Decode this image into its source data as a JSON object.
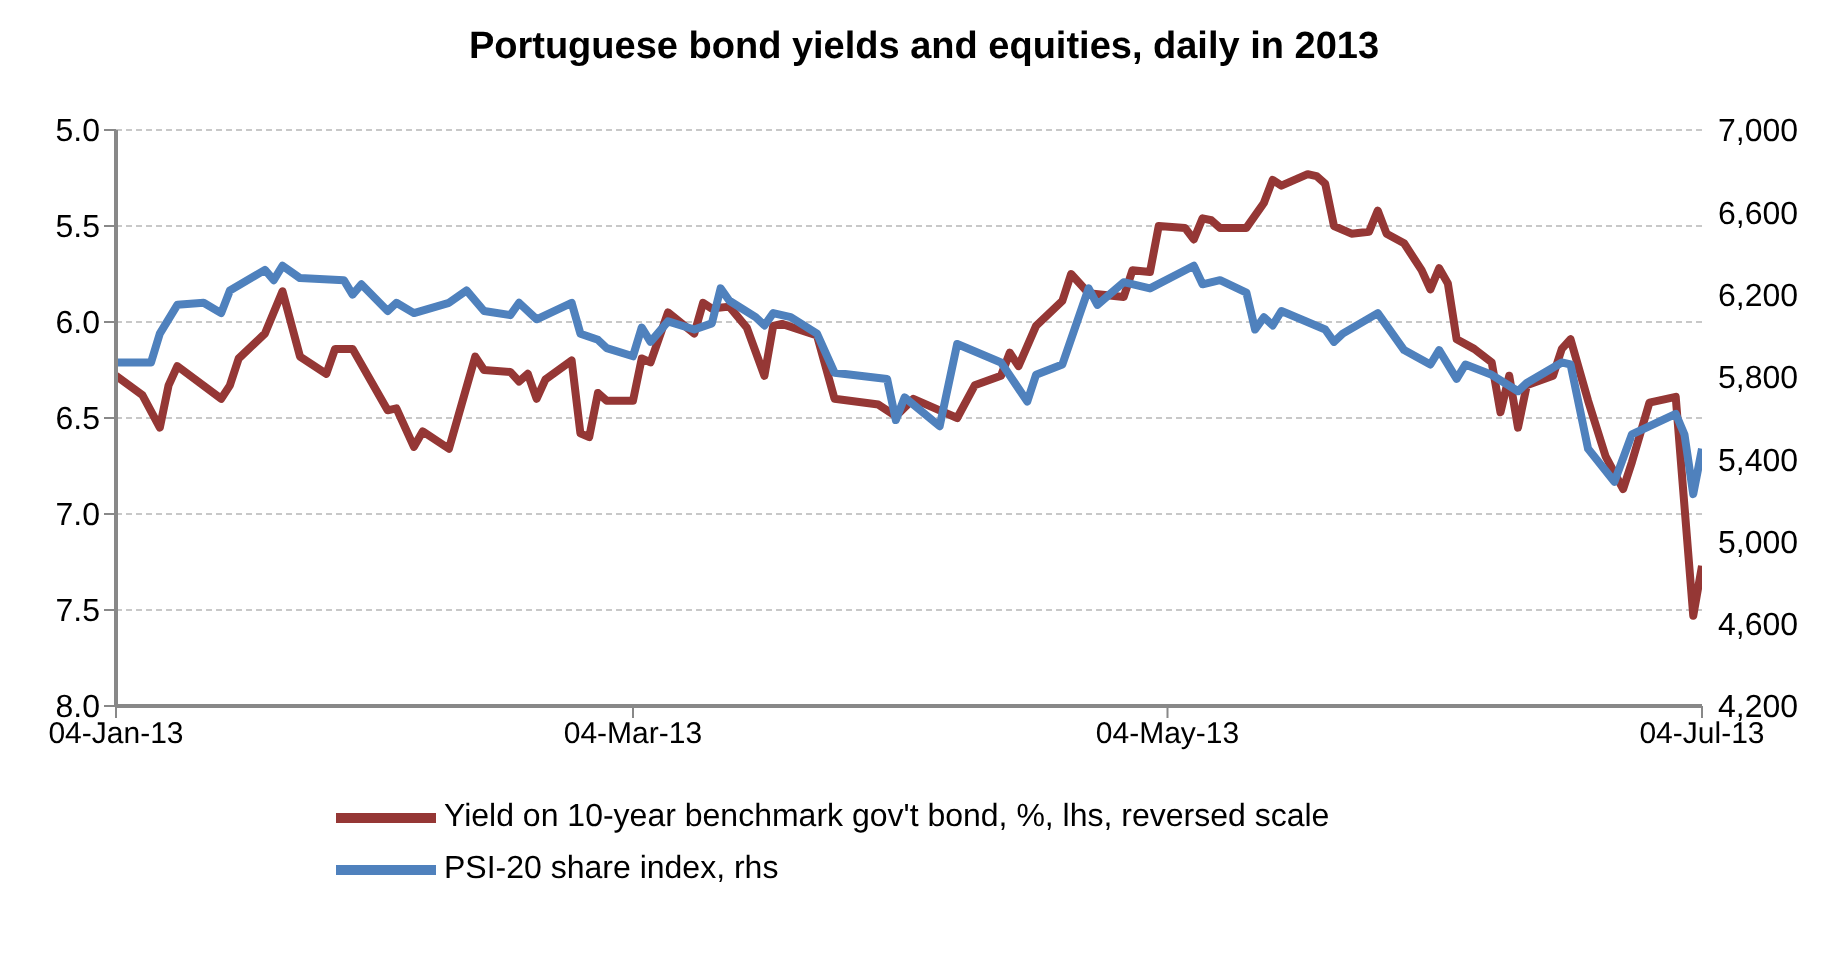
{
  "chart_data": {
    "type": "line",
    "title": "Portuguese bond yields and equities, daily in 2013",
    "xlim": [
      "2013-01-04",
      "2013-07-04"
    ],
    "xticks": [
      {
        "value": "2013-01-04",
        "label": "04-Jan-13"
      },
      {
        "value": "2013-03-04",
        "label": "04-Mar-13"
      },
      {
        "value": "2013-05-04",
        "label": "04-May-13"
      },
      {
        "value": "2013-07-04",
        "label": "04-Jul-13"
      }
    ],
    "ylim": [
      8.0,
      5.0
    ],
    "yticks": [
      {
        "value": 5.0,
        "label": "5.0"
      },
      {
        "value": 5.5,
        "label": "5.5"
      },
      {
        "value": 6.0,
        "label": "6.0"
      },
      {
        "value": 6.5,
        "label": "6.5"
      },
      {
        "value": 7.0,
        "label": "7.0"
      },
      {
        "value": 7.5,
        "label": "7.5"
      },
      {
        "value": 8.0,
        "label": "8.0"
      }
    ],
    "y2lim": [
      4200,
      7000
    ],
    "y2ticks": [
      {
        "value": 4200,
        "label": "4,200"
      },
      {
        "value": 4600,
        "label": "4,600"
      },
      {
        "value": 5000,
        "label": "5,000"
      },
      {
        "value": 5400,
        "label": "5,400"
      },
      {
        "value": 5800,
        "label": "5,800"
      },
      {
        "value": 6200,
        "label": "6,200"
      },
      {
        "value": 6600,
        "label": "6,600"
      },
      {
        "value": 7000,
        "label": "7,000"
      }
    ],
    "grid": "y",
    "legend": "bottom",
    "marker": "none",
    "line_style": "solid",
    "series": [
      {
        "name": "Yield on 10-year benchmark gov't bond, %, lhs, reversed scale",
        "color": "#953735",
        "axis": "y",
        "x": [
          "2013-01-04",
          "2013-01-07",
          "2013-01-09",
          "2013-01-10",
          "2013-01-11",
          "2013-01-16",
          "2013-01-17",
          "2013-01-18",
          "2013-01-21",
          "2013-01-23",
          "2013-01-25",
          "2013-01-28",
          "2013-01-29",
          "2013-01-31",
          "2013-02-04",
          "2013-02-05",
          "2013-02-07",
          "2013-02-08",
          "2013-02-11",
          "2013-02-14",
          "2013-02-15",
          "2013-02-18",
          "2013-02-19",
          "2013-02-20",
          "2013-02-21",
          "2013-02-22",
          "2013-02-25",
          "2013-02-26",
          "2013-02-27",
          "2013-02-28",
          "2013-03-01",
          "2013-03-04",
          "2013-03-05",
          "2013-03-06",
          "2013-03-08",
          "2013-03-11",
          "2013-03-12",
          "2013-03-13",
          "2013-03-15",
          "2013-03-17",
          "2013-03-19",
          "2013-03-20",
          "2013-03-21",
          "2013-03-25",
          "2013-03-27",
          "2013-04-01",
          "2013-04-03",
          "2013-04-05",
          "2013-04-08",
          "2013-04-10",
          "2013-04-12",
          "2013-04-15",
          "2013-04-16",
          "2013-04-17",
          "2013-04-19",
          "2013-04-22",
          "2013-04-23",
          "2013-04-25",
          "2013-04-29",
          "2013-04-30",
          "2013-05-02",
          "2013-05-03",
          "2013-05-06",
          "2013-05-07",
          "2013-05-08",
          "2013-05-09",
          "2013-05-10",
          "2013-05-13",
          "2013-05-15",
          "2013-05-16",
          "2013-05-17",
          "2013-05-20",
          "2013-05-21",
          "2013-05-22",
          "2013-05-23",
          "2013-05-25",
          "2013-05-27",
          "2013-05-28",
          "2013-05-29",
          "2013-05-31",
          "2013-06-02",
          "2013-06-03",
          "2013-06-04",
          "2013-06-05",
          "2013-06-06",
          "2013-06-08",
          "2013-06-10",
          "2013-06-11",
          "2013-06-12",
          "2013-06-13",
          "2013-06-14",
          "2013-06-17",
          "2013-06-18",
          "2013-06-19",
          "2013-06-21",
          "2013-06-23",
          "2013-06-25",
          "2013-06-26",
          "2013-06-28",
          "2013-07-01",
          "2013-07-03",
          "2013-07-04"
        ],
        "values": [
          6.28,
          6.38,
          6.55,
          6.33,
          6.23,
          6.4,
          6.33,
          6.19,
          6.06,
          5.84,
          6.18,
          6.27,
          6.14,
          6.14,
          6.46,
          6.45,
          6.65,
          6.57,
          6.66,
          6.18,
          6.25,
          6.26,
          6.31,
          6.27,
          6.4,
          6.3,
          6.2,
          6.58,
          6.6,
          6.37,
          6.41,
          6.41,
          6.19,
          6.21,
          5.95,
          6.06,
          5.9,
          5.93,
          5.92,
          6.03,
          6.28,
          6.02,
          6.01,
          6.07,
          6.4,
          6.43,
          6.49,
          6.4,
          6.46,
          6.5,
          6.33,
          6.28,
          6.16,
          6.23,
          6.02,
          5.89,
          5.75,
          5.85,
          5.87,
          5.73,
          5.74,
          5.5,
          5.51,
          5.57,
          5.46,
          5.47,
          5.51,
          5.51,
          5.38,
          5.26,
          5.29,
          5.23,
          5.24,
          5.28,
          5.5,
          5.54,
          5.53,
          5.42,
          5.54,
          5.59,
          5.73,
          5.83,
          5.72,
          5.8,
          6.09,
          6.14,
          6.21,
          6.47,
          6.28,
          6.55,
          6.33,
          6.28,
          6.14,
          6.09,
          6.41,
          6.7,
          6.87,
          6.73,
          6.42,
          6.39,
          7.53,
          7.27
        ]
      },
      {
        "name": "PSI-20 share index, rhs",
        "color": "#4f81bd",
        "axis": "y2",
        "x": [
          "2013-01-04",
          "2013-01-08",
          "2013-01-09",
          "2013-01-11",
          "2013-01-14",
          "2013-01-16",
          "2013-01-17",
          "2013-01-21",
          "2013-01-22",
          "2013-01-23",
          "2013-01-25",
          "2013-01-30",
          "2013-01-31",
          "2013-02-01",
          "2013-02-04",
          "2013-02-05",
          "2013-02-07",
          "2013-02-11",
          "2013-02-13",
          "2013-02-15",
          "2013-02-18",
          "2013-02-19",
          "2013-02-21",
          "2013-02-25",
          "2013-02-26",
          "2013-02-28",
          "2013-03-01",
          "2013-03-04",
          "2013-03-05",
          "2013-03-06",
          "2013-03-08",
          "2013-03-11",
          "2013-03-13",
          "2013-03-14",
          "2013-03-15",
          "2013-03-18",
          "2013-03-19",
          "2013-03-20",
          "2013-03-22",
          "2013-03-25",
          "2013-03-27",
          "2013-04-02",
          "2013-04-03",
          "2013-04-04",
          "2013-04-08",
          "2013-04-10",
          "2013-04-15",
          "2013-04-18",
          "2013-04-19",
          "2013-04-22",
          "2013-04-25",
          "2013-04-26",
          "2013-04-29",
          "2013-05-02",
          "2013-05-07",
          "2013-05-08",
          "2013-05-10",
          "2013-05-13",
          "2013-05-14",
          "2013-05-15",
          "2013-05-16",
          "2013-05-17",
          "2013-05-22",
          "2013-05-23",
          "2013-05-24",
          "2013-05-28",
          "2013-05-31",
          "2013-06-03",
          "2013-06-04",
          "2013-06-06",
          "2013-06-07",
          "2013-06-10",
          "2013-06-13",
          "2013-06-14",
          "2013-06-18",
          "2013-06-19",
          "2013-06-21",
          "2013-06-24",
          "2013-06-26",
          "2013-07-01",
          "2013-07-02",
          "2013-07-03",
          "2013-07-04"
        ],
        "values": [
          5870,
          5870,
          6010,
          6150,
          6160,
          6110,
          6220,
          6320,
          6270,
          6340,
          6280,
          6270,
          6200,
          6250,
          6120,
          6160,
          6110,
          6160,
          6220,
          6120,
          6100,
          6160,
          6080,
          6160,
          6010,
          5980,
          5940,
          5900,
          6040,
          5970,
          6070,
          6030,
          6060,
          6230,
          6170,
          6090,
          6050,
          6110,
          6090,
          6010,
          5820,
          5790,
          5590,
          5700,
          5560,
          5960,
          5870,
          5680,
          5810,
          5860,
          6230,
          6150,
          6260,
          6230,
          6340,
          6250,
          6270,
          6210,
          6030,
          6090,
          6050,
          6120,
          6030,
          5970,
          6010,
          6110,
          5930,
          5860,
          5930,
          5790,
          5860,
          5810,
          5730,
          5770,
          5870,
          5860,
          5450,
          5290,
          5520,
          5620,
          5520,
          5230,
          5450
        ]
      }
    ]
  }
}
